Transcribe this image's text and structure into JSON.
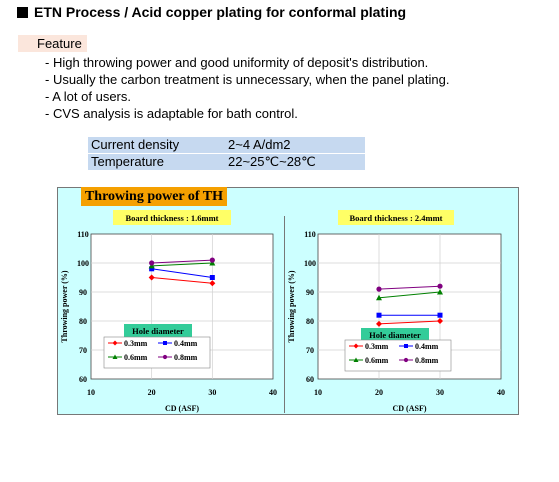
{
  "header": {
    "title": "ETN Process / Acid copper plating for conformal plating"
  },
  "feature": {
    "label": "Feature",
    "bullets": [
      "- High throwing power and good uniformity of deposit's distribution.",
      "- Usually the carbon treatment is unnecessary, when the panel plating.",
      "- A lot of users.",
      "- CVS analysis is adaptable for bath control."
    ]
  },
  "specs": [
    {
      "label": "Current density",
      "value": "2~4 A/dm2"
    },
    {
      "label": "Temperature",
      "value": "22~25℃~28℃"
    }
  ],
  "figure": {
    "title": "Throwing power of TH"
  },
  "colors": {
    "red": "#ff0000",
    "blue": "#0000ff",
    "green": "#008000",
    "purple": "#800080",
    "panel_bg": "#ccffff",
    "plot_bg": "#ffffff",
    "grid": "#d0d0d0"
  },
  "chart_data": [
    {
      "type": "line",
      "title": "Board thickness : 1.6mmt",
      "xlabel": "CD (ASF)",
      "ylabel": "Throwing power (%)",
      "xlim": [
        10,
        40
      ],
      "ylim": [
        60,
        110
      ],
      "xticks": [
        "10",
        "20",
        "30",
        "40"
      ],
      "yticks": [
        "60",
        "70",
        "80",
        "90",
        "100",
        "110"
      ],
      "grid": true,
      "legend_title": "Hole diameter",
      "legend_position": "bottom-left",
      "series": [
        {
          "name": "0.3mm",
          "color": "#ff0000",
          "marker": "diamond",
          "x": [
            20,
            30
          ],
          "y": [
            95,
            93
          ]
        },
        {
          "name": "0.4mm",
          "color": "#0000ff",
          "marker": "square",
          "x": [
            20,
            30
          ],
          "y": [
            98,
            95
          ]
        },
        {
          "name": "0.6mm",
          "color": "#008000",
          "marker": "triangle",
          "x": [
            20,
            30
          ],
          "y": [
            99,
            100
          ]
        },
        {
          "name": "0.8mm",
          "color": "#800080",
          "marker": "circle",
          "x": [
            20,
            30
          ],
          "y": [
            100,
            101
          ]
        }
      ]
    },
    {
      "type": "line",
      "title": "Board thickness : 2.4mmt",
      "xlabel": "CD (ASF)",
      "ylabel": "Throwing power (%)",
      "xlim": [
        10,
        40
      ],
      "ylim": [
        60,
        110
      ],
      "xticks": [
        "10",
        "20",
        "30",
        "40"
      ],
      "yticks": [
        "60",
        "70",
        "80",
        "90",
        "100",
        "110"
      ],
      "grid": true,
      "legend_title": "Hole diameter",
      "legend_position": "bottom-right",
      "series": [
        {
          "name": "0.3mm",
          "color": "#ff0000",
          "marker": "diamond",
          "x": [
            20,
            30
          ],
          "y": [
            79,
            80
          ]
        },
        {
          "name": "0.4mm",
          "color": "#0000ff",
          "marker": "square",
          "x": [
            20,
            30
          ],
          "y": [
            82,
            82
          ]
        },
        {
          "name": "0.6mm",
          "color": "#008000",
          "marker": "triangle",
          "x": [
            20,
            30
          ],
          "y": [
            88,
            90
          ]
        },
        {
          "name": "0.8mm",
          "color": "#800080",
          "marker": "circle",
          "x": [
            20,
            30
          ],
          "y": [
            91,
            92
          ]
        }
      ]
    }
  ]
}
